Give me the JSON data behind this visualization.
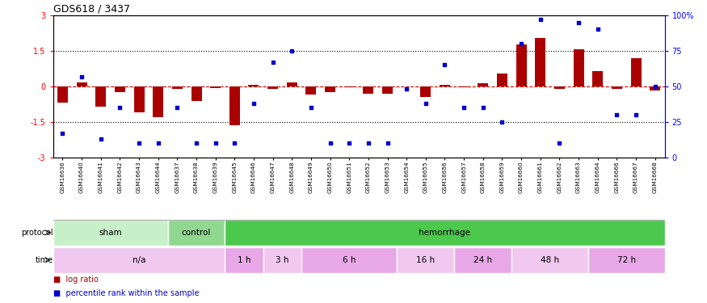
{
  "title": "GDS618 / 3437",
  "samples": [
    "GSM16636",
    "GSM16640",
    "GSM16641",
    "GSM16642",
    "GSM16643",
    "GSM16644",
    "GSM16637",
    "GSM16638",
    "GSM16639",
    "GSM16645",
    "GSM16646",
    "GSM16647",
    "GSM16648",
    "GSM16649",
    "GSM16650",
    "GSM16651",
    "GSM16652",
    "GSM16653",
    "GSM16654",
    "GSM16655",
    "GSM16656",
    "GSM16657",
    "GSM16658",
    "GSM16659",
    "GSM16660",
    "GSM16661",
    "GSM16662",
    "GSM16663",
    "GSM16664",
    "GSM16666",
    "GSM16667",
    "GSM16668"
  ],
  "log_ratio": [
    -0.7,
    0.15,
    -0.85,
    -0.25,
    -1.1,
    -1.3,
    -0.1,
    -0.6,
    -0.08,
    -1.65,
    0.05,
    -0.1,
    0.18,
    -0.35,
    -0.25,
    -0.05,
    -0.3,
    -0.3,
    0.0,
    -0.45,
    0.08,
    -0.05,
    0.12,
    0.55,
    1.75,
    2.05,
    -0.12,
    1.55,
    0.65,
    -0.12,
    1.2,
    -0.18
  ],
  "percentile": [
    17,
    57,
    13,
    35,
    10,
    10,
    35,
    10,
    10,
    10,
    38,
    67,
    75,
    35,
    10,
    10,
    10,
    10,
    48,
    38,
    65,
    35,
    35,
    25,
    80,
    97,
    10,
    95,
    90,
    30,
    30,
    50
  ],
  "protocol_groups": [
    {
      "label": "sham",
      "start": 0,
      "end": 6,
      "color": "#c8f0c8"
    },
    {
      "label": "control",
      "start": 6,
      "end": 9,
      "color": "#90d890"
    },
    {
      "label": "hemorrhage",
      "start": 9,
      "end": 32,
      "color": "#4cc84c"
    }
  ],
  "time_groups": [
    {
      "label": "n/a",
      "start": 0,
      "end": 9,
      "color": "#f0c8f0"
    },
    {
      "label": "1 h",
      "start": 9,
      "end": 11,
      "color": "#e8a8e8"
    },
    {
      "label": "3 h",
      "start": 11,
      "end": 13,
      "color": "#f0c8f0"
    },
    {
      "label": "6 h",
      "start": 13,
      "end": 18,
      "color": "#e8a8e8"
    },
    {
      "label": "16 h",
      "start": 18,
      "end": 21,
      "color": "#f0c8f0"
    },
    {
      "label": "24 h",
      "start": 21,
      "end": 24,
      "color": "#e8a8e8"
    },
    {
      "label": "48 h",
      "start": 24,
      "end": 28,
      "color": "#f0c8f0"
    },
    {
      "label": "72 h",
      "start": 28,
      "end": 32,
      "color": "#e8a8e8"
    }
  ],
  "bar_color": "#aa0000",
  "dot_color": "#0000cc",
  "bar_width": 0.55,
  "ylim": [
    -3,
    3
  ],
  "y2lim": [
    0,
    100
  ],
  "dotted_lines": [
    1.5,
    -1.5
  ],
  "zero_line_color": "#cc0000"
}
